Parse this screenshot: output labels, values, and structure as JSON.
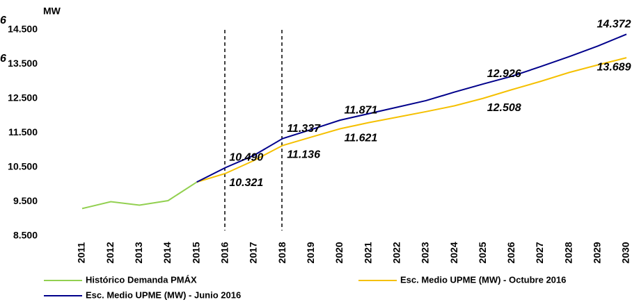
{
  "chart_data": {
    "type": "line",
    "ylabel": "MW",
    "categories": [
      "2011",
      "2012",
      "2013",
      "2014",
      "2015",
      "2016",
      "2017",
      "2018",
      "2019",
      "2020",
      "2021",
      "2022",
      "2023",
      "2024",
      "2025",
      "2026",
      "2027",
      "2028",
      "2029",
      "2030"
    ],
    "series": [
      {
        "name": "Histórico Demanda PMÁX",
        "color": "#92d050",
        "values": [
          9300,
          9500,
          9400,
          9530,
          10070,
          null,
          null,
          null,
          null,
          null,
          null,
          null,
          null,
          null,
          null,
          null,
          null,
          null,
          null,
          null
        ]
      },
      {
        "name": "Esc. Medio UPME (MW) - Octubre 2016",
        "color": "#f5c000",
        "values": [
          null,
          null,
          null,
          null,
          10070,
          10321,
          10700,
          11136,
          11380,
          11621,
          11800,
          11960,
          12120,
          12290,
          12508,
          12760,
          13000,
          13260,
          13480,
          13689
        ],
        "value_labels": [
          null,
          null,
          null,
          null,
          null,
          "10.321",
          null,
          "11.136",
          null,
          "11.621",
          null,
          null,
          null,
          null,
          "12.508",
          null,
          null,
          null,
          null,
          "13.689"
        ]
      },
      {
        "name": "Esc. Medio UPME (MW) - Junio 2016",
        "color": "#00008b",
        "values": [
          null,
          null,
          null,
          null,
          10070,
          10490,
          10850,
          11337,
          11600,
          11871,
          12060,
          12250,
          12440,
          12690,
          12926,
          13150,
          13430,
          13720,
          14030,
          14372
        ],
        "value_labels": [
          null,
          null,
          null,
          null,
          null,
          "10.490",
          null,
          "11.337",
          null,
          "11.871",
          null,
          null,
          null,
          null,
          "12.926",
          null,
          null,
          null,
          null,
          "14.372"
        ]
      }
    ],
    "annotations": [
      {
        "text": "6",
        "color": "#1f3a93"
      },
      {
        "text": "6",
        "color": "#d4a017"
      }
    ],
    "ylim": [
      8500,
      14500
    ],
    "yticks": [
      {
        "value": 8500,
        "label": "8.500"
      },
      {
        "value": 9500,
        "label": "9.500"
      },
      {
        "value": 10500,
        "label": "10.500"
      },
      {
        "value": 11500,
        "label": "11.500"
      },
      {
        "value": 12500,
        "label": "12.500"
      },
      {
        "value": 13500,
        "label": "13.500"
      },
      {
        "value": 14500,
        "label": "14.500"
      }
    ],
    "grid": false
  }
}
